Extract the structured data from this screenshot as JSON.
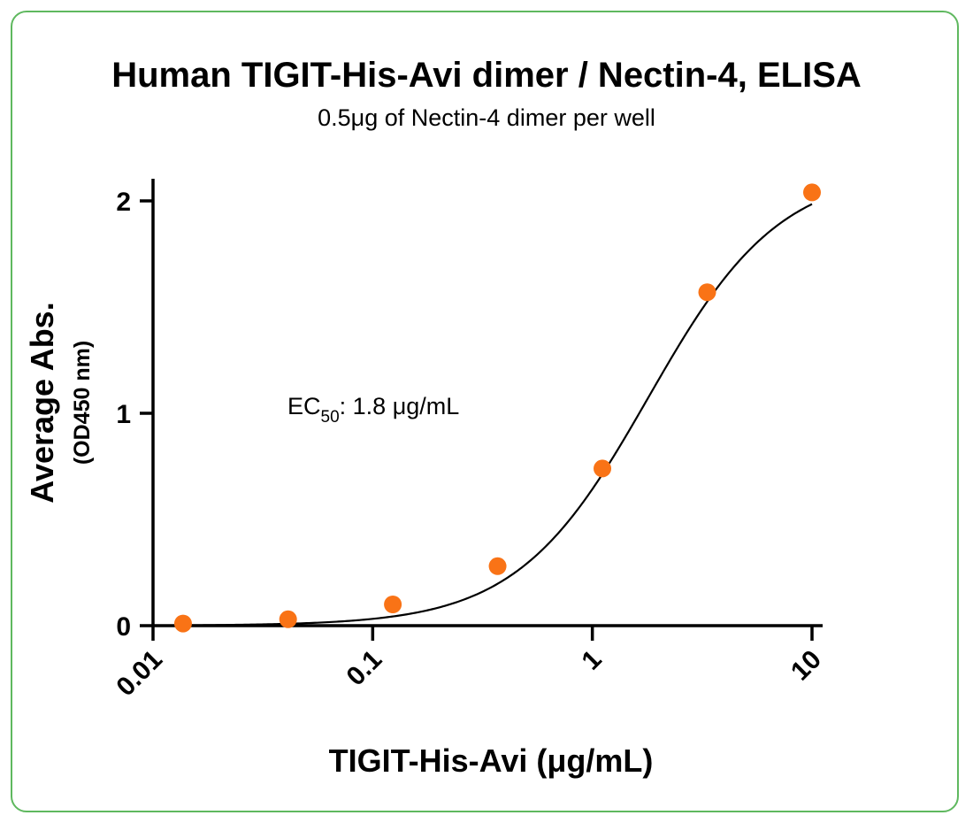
{
  "chart_data": {
    "type": "scatter",
    "title": "Human TIGIT-His-Avi dimer / Nectin-4, ELISA",
    "subtitle": "0.5μg of Nectin-4 dimer per well",
    "xlabel": "TIGIT-His-Avi (μg/mL)",
    "ylabel": "Average Abs.",
    "ylabel_sub": "(OD450 nm)",
    "x_scale": "log",
    "xlim": [
      0.01,
      10
    ],
    "ylim": [
      0,
      2.1
    ],
    "x_ticks": [
      0.01,
      0.1,
      1,
      10
    ],
    "x_tick_labels": [
      "0.01",
      "0.1",
      "1",
      "10"
    ],
    "y_ticks": [
      0,
      1,
      2
    ],
    "y_tick_labels": [
      "0",
      "1",
      "2"
    ],
    "grid": false,
    "point_color": "#f97316",
    "curve_color": "#000000",
    "series": [
      {
        "x": [
          0.0137,
          0.0412,
          0.1235,
          0.3704,
          1.111,
          3.333,
          10
        ],
        "y": [
          0.01,
          0.03,
          0.1,
          0.28,
          0.74,
          1.57,
          2.04
        ]
      }
    ],
    "fit": {
      "model": "4PL",
      "bottom": 0.0,
      "top": 2.15,
      "ec50": 1.8,
      "hill": 1.45
    },
    "annotation": {
      "prefix": "EC",
      "subscript": "50",
      "suffix": ": 1.8 μg/mL"
    }
  }
}
